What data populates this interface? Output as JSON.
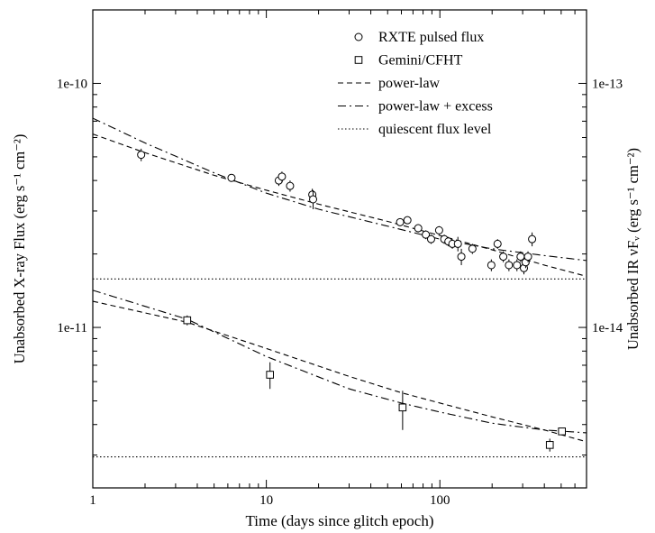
{
  "chart_data": {
    "type": "scatter",
    "title": "",
    "xlabel": "Time (days since glitch epoch)",
    "ylabel_left": "Unabsorbed X-ray Flux (erg s⁻¹ cm⁻²)",
    "ylabel_right": "Unabsorbed IR νFᵥ (erg s⁻¹ cm⁻²)",
    "x_scale": "log",
    "y_scale": "log",
    "xlim": [
      1,
      700
    ],
    "ylim_left": [
      2.2e-12,
      2e-10
    ],
    "ylim_right": [
      2.2e-15,
      2e-13
    ],
    "x_ticks": [
      {
        "value": 1,
        "label": "1"
      },
      {
        "value": 10,
        "label": "10"
      },
      {
        "value": 100,
        "label": "100"
      }
    ],
    "y_ticks_left": [
      {
        "value": 1e-10,
        "label": "1e-10"
      },
      {
        "value": 1e-11,
        "label": "1e-11"
      }
    ],
    "y_ticks_right": [
      {
        "value": 1e-13,
        "label": "1e-13"
      },
      {
        "value": 1e-14,
        "label": "1e-14"
      }
    ],
    "legend_position": "top-right",
    "legend": [
      {
        "label": "RXTE pulsed flux",
        "marker": "circle"
      },
      {
        "label": "Gemini/CFHT",
        "marker": "square"
      },
      {
        "label": "power-law",
        "dash": "dashed"
      },
      {
        "label": "power-law + excess",
        "dash": "dashdot"
      },
      {
        "label": "quiescent flux level",
        "dash": "dotted"
      }
    ],
    "series": [
      {
        "name": "RXTE pulsed flux",
        "marker": "circle",
        "axis": "left",
        "points": [
          {
            "x": 1.9,
            "y": 5.1e-11,
            "ylo": 4.8e-11,
            "yhi": 5.4e-11
          },
          {
            "x": 6.3,
            "y": 4.1e-11,
            "ylo": 3.95e-11,
            "yhi": 4.25e-11
          },
          {
            "x": 11.8,
            "y": 4e-11,
            "ylo": 3.8e-11,
            "yhi": 4.2e-11
          },
          {
            "x": 12.3,
            "y": 4.15e-11,
            "ylo": 3.95e-11,
            "yhi": 4.35e-11
          },
          {
            "x": 13.7,
            "y": 3.8e-11,
            "ylo": 3.6e-11,
            "yhi": 4e-11
          },
          {
            "x": 18.4,
            "y": 3.5e-11,
            "ylo": 3.3e-11,
            "yhi": 3.7e-11
          },
          {
            "x": 18.6,
            "y": 3.35e-11,
            "ylo": 3.05e-11,
            "yhi": 3.65e-11
          },
          {
            "x": 59,
            "y": 2.7e-11,
            "ylo": 2.6e-11,
            "yhi": 2.8e-11
          },
          {
            "x": 65,
            "y": 2.75e-11,
            "ylo": 2.65e-11,
            "yhi": 2.85e-11
          },
          {
            "x": 75,
            "y": 2.55e-11,
            "ylo": 2.45e-11,
            "yhi": 2.65e-11
          },
          {
            "x": 83,
            "y": 2.4e-11,
            "ylo": 2.3e-11,
            "yhi": 2.5e-11
          },
          {
            "x": 89,
            "y": 2.3e-11,
            "ylo": 2.2e-11,
            "yhi": 2.4e-11
          },
          {
            "x": 99,
            "y": 2.5e-11,
            "ylo": 2.4e-11,
            "yhi": 2.6e-11
          },
          {
            "x": 106,
            "y": 2.3e-11,
            "ylo": 2.2e-11,
            "yhi": 2.4e-11
          },
          {
            "x": 112,
            "y": 2.25e-11,
            "ylo": 2.15e-11,
            "yhi": 2.35e-11
          },
          {
            "x": 118,
            "y": 2.2e-11,
            "ylo": 2.1e-11,
            "yhi": 2.3e-11
          },
          {
            "x": 127,
            "y": 2.2e-11,
            "ylo": 2.05e-11,
            "yhi": 2.35e-11
          },
          {
            "x": 133,
            "y": 1.95e-11,
            "ylo": 1.8e-11,
            "yhi": 2.1e-11
          },
          {
            "x": 154,
            "y": 2.1e-11,
            "ylo": 2e-11,
            "yhi": 2.2e-11
          },
          {
            "x": 198,
            "y": 1.8e-11,
            "ylo": 1.7e-11,
            "yhi": 1.9e-11
          },
          {
            "x": 215,
            "y": 2.2e-11,
            "ylo": 2.1e-11,
            "yhi": 2.3e-11
          },
          {
            "x": 232,
            "y": 1.95e-11,
            "ylo": 1.85e-11,
            "yhi": 2.05e-11
          },
          {
            "x": 250,
            "y": 1.8e-11,
            "ylo": 1.7e-11,
            "yhi": 1.9e-11
          },
          {
            "x": 278,
            "y": 1.8e-11,
            "ylo": 1.7e-11,
            "yhi": 1.9e-11
          },
          {
            "x": 292,
            "y": 1.95e-11,
            "ylo": 1.85e-11,
            "yhi": 2.05e-11
          },
          {
            "x": 305,
            "y": 1.75e-11,
            "ylo": 1.65e-11,
            "yhi": 1.85e-11
          },
          {
            "x": 312,
            "y": 1.85e-11,
            "ylo": 1.75e-11,
            "yhi": 1.95e-11
          },
          {
            "x": 322,
            "y": 1.95e-11,
            "ylo": 1.85e-11,
            "yhi": 2.05e-11
          },
          {
            "x": 340,
            "y": 2.3e-11,
            "ylo": 2.15e-11,
            "yhi": 2.45e-11
          }
        ]
      },
      {
        "name": "Gemini/CFHT",
        "marker": "square",
        "axis": "right",
        "points": [
          {
            "x": 3.5,
            "y": 1.07e-14,
            "ylo": 1.02e-14,
            "yhi": 1.12e-14
          },
          {
            "x": 10.5,
            "y": 6.4e-15,
            "ylo": 5.6e-15,
            "yhi": 7.2e-15
          },
          {
            "x": 61,
            "y": 4.7e-15,
            "ylo": 3.8e-15,
            "yhi": 5.5e-15
          },
          {
            "x": 430,
            "y": 3.3e-15,
            "ylo": 3.1e-15,
            "yhi": 3.5e-15
          },
          {
            "x": 505,
            "y": 3.75e-15,
            "ylo": 3.65e-15,
            "yhi": 3.85e-15
          }
        ]
      }
    ],
    "curves": [
      {
        "name": "power-law",
        "dash": "dashed",
        "axis": "left",
        "x": [
          1,
          2,
          5,
          10,
          20,
          50,
          100,
          200,
          400,
          700
        ],
        "y": [
          6.2e-11,
          5.2e-11,
          4.2e-11,
          3.65e-11,
          3.2e-11,
          2.72e-11,
          2.38e-11,
          2.08e-11,
          1.8e-11,
          1.62e-11
        ]
      },
      {
        "name": "power-law + excess",
        "dash": "dashdot",
        "axis": "left",
        "x": [
          1,
          2,
          5,
          10,
          20,
          50,
          100,
          200,
          400,
          700
        ],
        "y": [
          7.2e-11,
          5.7e-11,
          4.3e-11,
          3.55e-11,
          3.05e-11,
          2.6e-11,
          2.3e-11,
          2.1e-11,
          1.97e-11,
          1.88e-11
        ]
      },
      {
        "name": "quiescent flux level",
        "dash": "dotted",
        "axis": "left",
        "x": [
          1,
          700
        ],
        "y": [
          1.58e-11,
          1.58e-11
        ]
      },
      {
        "name": "power-law",
        "dash": "dashed",
        "axis": "right",
        "x": [
          1,
          3.5,
          10,
          30,
          60,
          100,
          200,
          400,
          700
        ],
        "y": [
          1.28e-14,
          1.05e-14,
          8.2e-15,
          6.3e-15,
          5.4e-15,
          4.9e-15,
          4.3e-15,
          3.8e-15,
          3.4e-15
        ]
      },
      {
        "name": "power-law + excess",
        "dash": "dashdot",
        "axis": "right",
        "x": [
          1,
          3.5,
          10,
          30,
          60,
          100,
          200,
          400,
          700
        ],
        "y": [
          1.42e-14,
          1.08e-14,
          7.6e-15,
          5.6e-15,
          4.9e-15,
          4.5e-15,
          4.05e-15,
          3.8e-15,
          3.7e-15
        ]
      },
      {
        "name": "quiescent flux level",
        "dash": "dotted",
        "axis": "right",
        "x": [
          1,
          700
        ],
        "y": [
          2.95e-15,
          2.95e-15
        ]
      }
    ]
  }
}
